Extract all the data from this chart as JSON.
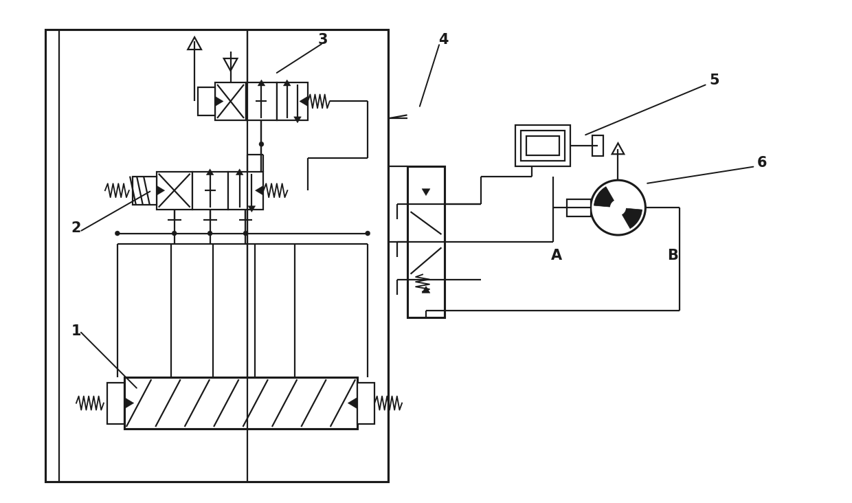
{
  "bg_color": "#ffffff",
  "line_color": "#1a1a1a",
  "lw": 1.6,
  "fig_width": 12.4,
  "fig_height": 7.32,
  "label_fontsize": 15
}
